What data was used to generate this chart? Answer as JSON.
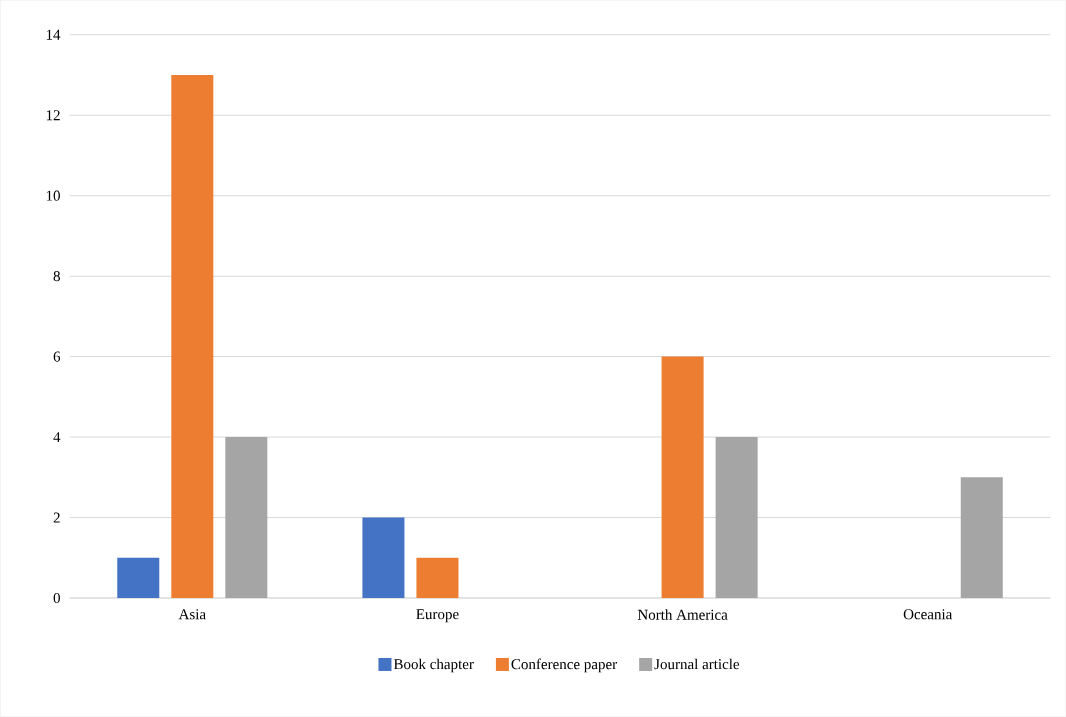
{
  "chart_data": {
    "type": "bar",
    "categories": [
      "Asia",
      "Europe",
      "North America",
      "Oceania"
    ],
    "series": [
      {
        "name": "Book chapter",
        "color": "#4472c4",
        "values": [
          1,
          2,
          0,
          0
        ]
      },
      {
        "name": "Conference paper",
        "color": "#ed7d31",
        "values": [
          13,
          1,
          6,
          0
        ]
      },
      {
        "name": "Journal article",
        "color": "#a5a5a5",
        "values": [
          4,
          0,
          4,
          3
        ]
      }
    ],
    "ylim": [
      0,
      14
    ],
    "yticks": [
      0,
      2,
      4,
      6,
      8,
      10,
      12,
      14
    ],
    "grid": "y",
    "legend": "bottom"
  }
}
